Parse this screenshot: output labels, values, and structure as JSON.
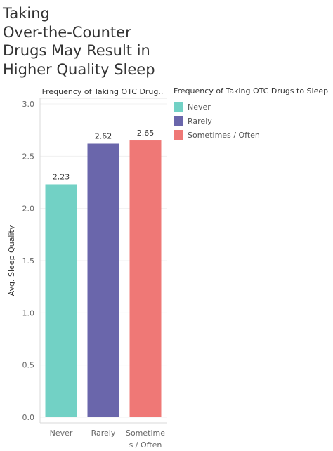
{
  "title": {
    "lines": [
      "Taking",
      "Over-the-Counter",
      "Drugs May Result in",
      "Higher Quality Sleep"
    ]
  },
  "chart_data": {
    "type": "bar",
    "column_header": "Frequency of Taking OTC Drug..",
    "categories": [
      "Never",
      "Rarely",
      "Sometimes / Often"
    ],
    "category_tick_lines": [
      [
        "Never"
      ],
      [
        "Rarely"
      ],
      [
        "Sometime",
        "s / Often"
      ]
    ],
    "values": [
      2.23,
      2.62,
      2.65
    ],
    "data_labels": [
      "2.23",
      "2.62",
      "2.65"
    ],
    "colors": [
      "#72d1c5",
      "#6a66ab",
      "#ef7876"
    ],
    "ylabel": "Avg. Sleep Quality",
    "ylim": [
      0,
      3.0
    ],
    "yticks": [
      0.0,
      0.5,
      1.0,
      1.5,
      2.0,
      2.5,
      3.0
    ],
    "ytick_labels": [
      "0.0",
      "0.5",
      "1.0",
      "1.5",
      "2.0",
      "2.5",
      "3.0"
    ],
    "grid": true,
    "legend": {
      "title": "Frequency of Taking OTC Drugs to Sleep",
      "placement": "right",
      "items": [
        "Never",
        "Rarely",
        "Sometimes / Often"
      ]
    }
  }
}
